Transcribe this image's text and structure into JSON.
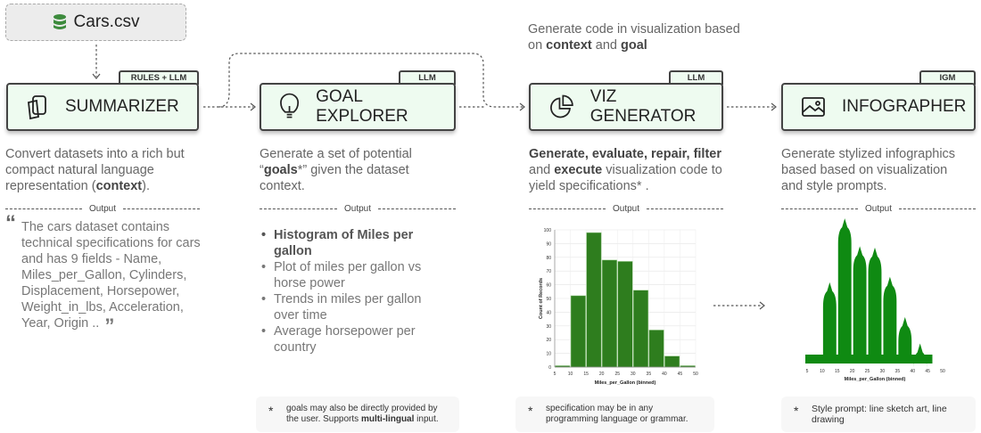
{
  "source": {
    "label": "Cars.csv",
    "icon": "database-icon"
  },
  "stages": [
    {
      "title": "SUMMARIZER",
      "tag": "RULES + LLM",
      "icon": "clipboard-icon"
    },
    {
      "title": "GOAL EXPLORER",
      "tag": "LLM",
      "icon": "lightbulb-icon"
    },
    {
      "title": "VIZ GENERATOR",
      "tag": "LLM",
      "icon": "pie-chart-icon"
    },
    {
      "title": "INFOGRAPHER",
      "tag": "IGM",
      "icon": "image-icon"
    }
  ],
  "top_note": {
    "a": "Generate code in visualization based on ",
    "b": "context",
    "c": " and ",
    "d": "goal"
  },
  "desc": {
    "summarizer": {
      "a": "Convert datasets into a rich but compact natural language representation (",
      "b": "context",
      "c": ")."
    },
    "goal": {
      "a": "Generate a set of potential “",
      "b": "goals",
      "c": "*” given the dataset context."
    },
    "viz": {
      "a": "Generate, evaluate, repair, filter",
      "b": " and ",
      "c": "execute",
      "d": " visualization code to yield specifications* ."
    },
    "info": {
      "a": "Generate stylized infographics based based on visualization and style prompts."
    }
  },
  "output_label": "Output",
  "summary_quote": "The cars dataset contains technical specifications for cars and has 9 fields - Name, Miles_per_Gallon, Cylinders, Displacement, Horsepower, Weight_in_lbs, Acceleration, Year, Origin ..",
  "goals": [
    "Histogram of Miles per gallon",
    "Plot of miles per gallon vs horse power",
    "Trends in miles per gallon over time",
    "Average horsepower per country"
  ],
  "notes": {
    "goal": {
      "a": "goals may also be directly provided by the user. Supports ",
      "b": "multi-lingual",
      "c": " input."
    },
    "viz": {
      "a": "specification may be in any programming language or grammar."
    },
    "info": {
      "a": "Style prompt: line sketch art, line drawing"
    }
  },
  "colors": {
    "bar": "#2e7d1e",
    "info": "#0f8a12",
    "box": "#eefbf0"
  },
  "chart_data": {
    "type": "bar",
    "title": "",
    "xlabel": "Miles_per_Gallon (binned)",
    "ylabel": "Count of Records",
    "bins": [
      [
        5,
        10
      ],
      [
        10,
        15
      ],
      [
        15,
        20
      ],
      [
        20,
        25
      ],
      [
        25,
        30
      ],
      [
        30,
        35
      ],
      [
        35,
        40
      ],
      [
        40,
        45
      ],
      [
        45,
        50
      ]
    ],
    "values": [
      1,
      52,
      98,
      78,
      77,
      56,
      27,
      8,
      1
    ],
    "xticks": [
      5,
      10,
      15,
      20,
      25,
      30,
      35,
      40,
      45,
      50
    ],
    "yticks": [
      0,
      10,
      20,
      30,
      40,
      50,
      60,
      70,
      80,
      90,
      100
    ],
    "xlim": [
      5,
      50
    ],
    "ylim": [
      0,
      100
    ],
    "grid": true
  },
  "infographic": {
    "xlabel": "Miles_per_Gallon (binned)",
    "xticks": [
      5,
      10,
      15,
      20,
      25,
      30,
      35,
      40,
      45,
      50
    ]
  }
}
